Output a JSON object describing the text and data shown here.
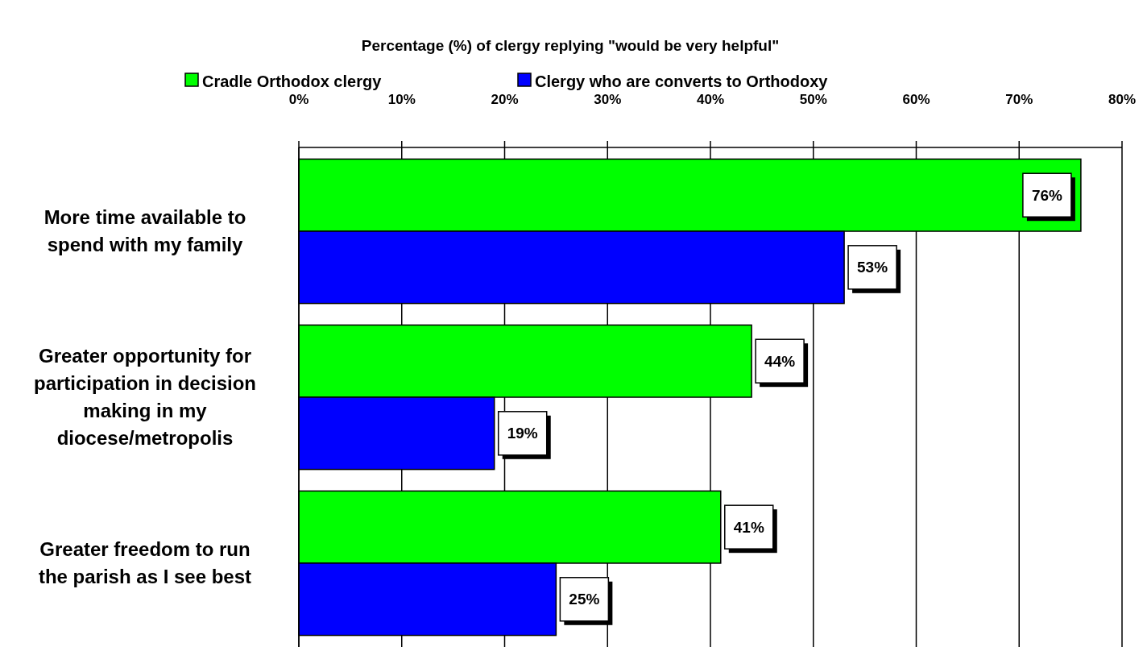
{
  "chart_data": {
    "type": "bar",
    "orientation": "horizontal",
    "title": "Percentage (%) of clergy replying \"would be very helpful\"",
    "categories": [
      "More time available to spend with my family",
      "Greater opportunity for participation in decision making in my diocese/metropolis",
      "Greater freedom to run the parish as I see best"
    ],
    "series": [
      {
        "name": "Cradle Orthodox clergy",
        "color": "#00ff00",
        "values": [
          76,
          44,
          41
        ],
        "value_labels": [
          "76%",
          "44%",
          "41%"
        ]
      },
      {
        "name": "Clergy who are converts to Orthodoxy",
        "color": "#0000ff",
        "values": [
          53,
          19,
          25
        ],
        "value_labels": [
          "53%",
          "19%",
          "25%"
        ]
      }
    ],
    "xlim": [
      0,
      80
    ],
    "xticks": [
      {
        "value": 0,
        "label": "0%"
      },
      {
        "value": 10,
        "label": "10%"
      },
      {
        "value": 20,
        "label": "20%"
      },
      {
        "value": 30,
        "label": "30%"
      },
      {
        "value": 40,
        "label": "40%"
      },
      {
        "value": 50,
        "label": "50%"
      },
      {
        "value": 60,
        "label": "60%"
      },
      {
        "value": 70,
        "label": "70%"
      },
      {
        "value": 80,
        "label": "80%"
      }
    ],
    "grid": "x",
    "legend": "top"
  }
}
